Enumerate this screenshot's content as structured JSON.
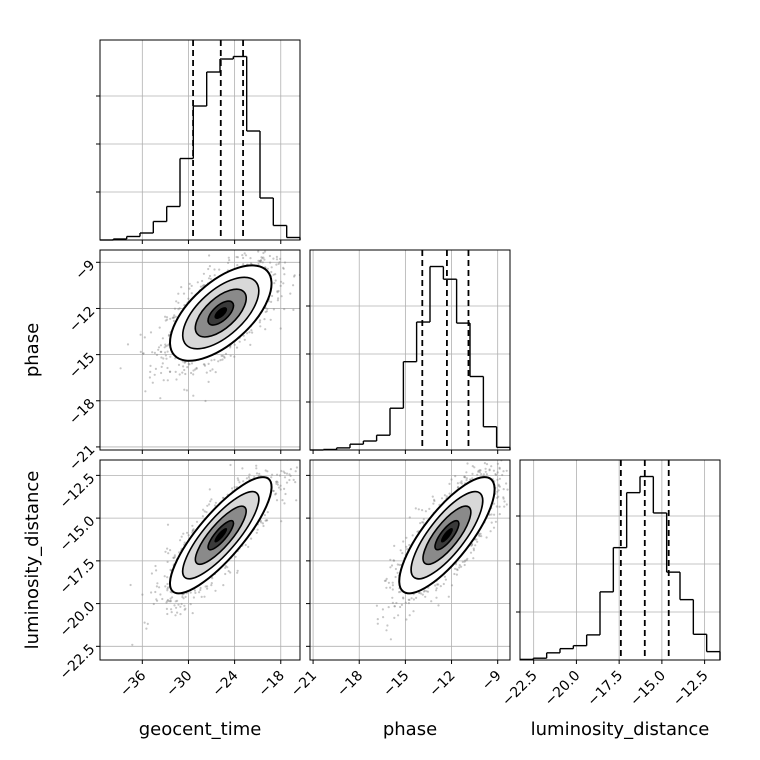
{
  "chart_data": {
    "type": "corner",
    "variables": [
      "geocent_time",
      "phase",
      "luminosity_distance"
    ],
    "axis_labels": {
      "x": [
        "geocent_time",
        "phase",
        "luminosity_distance"
      ],
      "y": [
        "phase",
        "luminosity_distance"
      ]
    },
    "ranges": {
      "geocent_time": [
        -41.5,
        -15.5
      ],
      "phase": [
        -21.2,
        -8.2
      ],
      "luminosity_distance": [
        -23.3,
        -11.6
      ]
    },
    "ticks": {
      "geocent_time": [
        -36,
        -30,
        -24,
        -18
      ],
      "phase": [
        -21,
        -18,
        -15,
        -12,
        -9
      ],
      "luminosity_distance": [
        -22.5,
        -20.0,
        -17.5,
        -15.0,
        -12.5
      ]
    },
    "tick_labels": {
      "geocent_time": [
        "−36",
        "−30",
        "−24",
        "−18"
      ],
      "phase": [
        "−21",
        "−18",
        "−15",
        "−12",
        "−9"
      ],
      "luminosity_distance": [
        "−22.5",
        "−20.0",
        "−17.5",
        "−15.0",
        "−12.5"
      ]
    },
    "quantiles": {
      "geocent_time": [
        -29.4,
        -25.8,
        -22.9
      ],
      "phase": [
        -13.9,
        -12.3,
        -10.9
      ],
      "luminosity_distance": [
        -17.4,
        -16.0,
        -14.6
      ]
    },
    "histograms": {
      "geocent_time": {
        "edges": [
          -41.5,
          -39.77,
          -38.03,
          -36.3,
          -34.57,
          -32.83,
          -31.1,
          -29.37,
          -27.63,
          -25.9,
          -24.17,
          -22.43,
          -20.7,
          -18.97,
          -17.23,
          -15.5
        ],
        "counts": [
          0,
          2,
          7,
          14,
          37,
          67,
          163,
          268,
          336,
          362,
          367,
          218,
          84,
          29,
          5
        ]
      },
      "phase": {
        "edges": [
          -21.2,
          -20.33,
          -19.47,
          -18.6,
          -17.73,
          -16.87,
          -16.0,
          -15.13,
          -14.27,
          -13.4,
          -12.53,
          -11.67,
          -10.8,
          -9.93,
          -9.07,
          -8.2
        ],
        "counts": [
          0,
          1,
          4,
          11,
          17,
          28,
          79,
          167,
          242,
          347,
          323,
          240,
          139,
          44,
          5
        ]
      },
      "luminosity_distance": {
        "edges": [
          -23.3,
          -22.52,
          -21.74,
          -20.96,
          -20.18,
          -19.4,
          -18.62,
          -17.84,
          -17.06,
          -16.28,
          -15.5,
          -14.72,
          -13.94,
          -13.16,
          -12.38,
          -11.6
        ],
        "counts": [
          1,
          3,
          12,
          19,
          24,
          42,
          114,
          188,
          280,
          307,
          246,
          147,
          101,
          43,
          14
        ]
      }
    },
    "pairs": [
      {
        "x": "geocent_time",
        "y": "phase",
        "mean": [
          -25.8,
          -12.3
        ],
        "sd": [
          3.3,
          1.55
        ],
        "corr": 0.62
      },
      {
        "x": "geocent_time",
        "y": "luminosity_distance",
        "mean": [
          -25.8,
          -16.0
        ],
        "sd": [
          3.3,
          1.7
        ],
        "corr": 0.83
      },
      {
        "x": "phase",
        "y": "luminosity_distance",
        "mean": [
          -12.3,
          -16.0
        ],
        "sd": [
          1.55,
          1.7
        ],
        "corr": 0.79
      }
    ],
    "contour_levels": [
      "0.5-sigma",
      "1-sigma",
      "1.5-sigma",
      "2-sigma"
    ],
    "grid": true,
    "scatter_color": "#808080",
    "line_color": "#000000"
  }
}
